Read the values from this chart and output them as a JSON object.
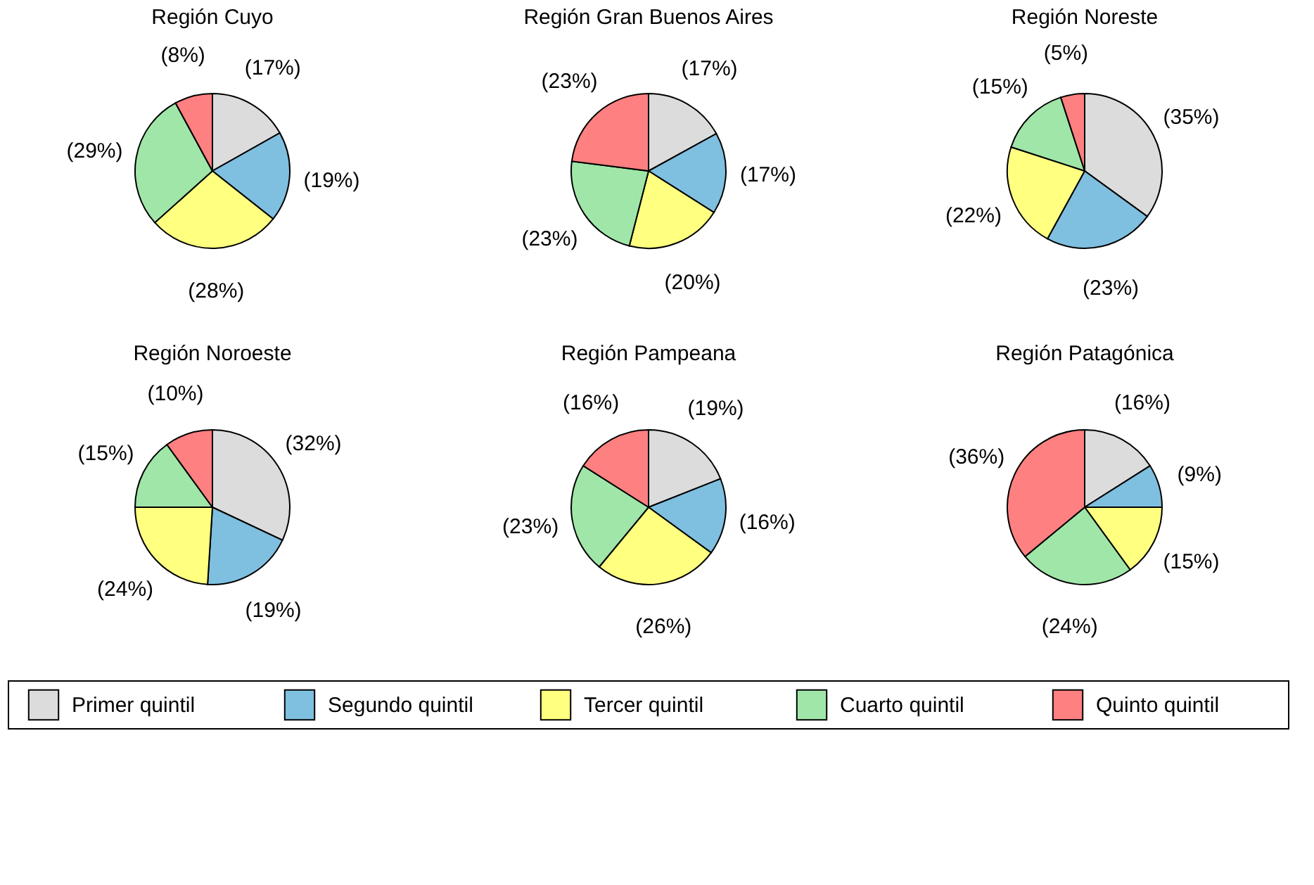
{
  "chart_data": [
    {
      "type": "pie",
      "title": "Región Cuyo",
      "categories": [
        "Primer quintil",
        "Segundo quintil",
        "Tercer quintil",
        "Cuarto quintil",
        "Quinto quintil"
      ],
      "values": [
        17,
        19,
        28,
        29,
        8
      ],
      "value_labels": [
        "(17%)",
        "(19%)",
        "(28%)",
        "(29%)",
        "(8%)"
      ],
      "colors": [
        "#dcdcdc",
        "#7fbfdf",
        "#ffff80",
        "#a0e6a8",
        "#ff8080"
      ],
      "legend": "bottom"
    },
    {
      "type": "pie",
      "title": "Región Gran Buenos Aires",
      "categories": [
        null,
        null,
        null,
        null,
        null
      ],
      "values": [
        17,
        17,
        20,
        23,
        23
      ],
      "value_labels": [
        "(17%)",
        "(17%)",
        "(20%)",
        "(23%)",
        "(23%)"
      ],
      "colors": [
        "#dcdcdc",
        "#7fbfdf",
        "#ffff80",
        "#a0e6a8",
        "#ff8080"
      ]
    },
    {
      "type": "pie",
      "title": "Región Noreste",
      "categories": [
        null,
        null,
        null,
        null,
        null
      ],
      "values": [
        35,
        23,
        22,
        15,
        5
      ],
      "value_labels": [
        "(35%)",
        "(23%)",
        "(22%)",
        "(15%)",
        "(5%)"
      ],
      "colors": [
        "#dcdcdc",
        "#7fbfdf",
        "#ffff80",
        "#a0e6a8",
        "#ff8080"
      ]
    },
    {
      "type": "pie",
      "title": "Región Noroeste",
      "categories": [
        null,
        null,
        null,
        null,
        null
      ],
      "values": [
        32,
        19,
        24,
        15,
        10
      ],
      "value_labels": [
        "(32%)",
        "(19%)",
        "(24%)",
        "(15%)",
        "(10%)"
      ],
      "colors": [
        "#dcdcdc",
        "#7fbfdf",
        "#ffff80",
        "#a0e6a8",
        "#ff8080"
      ]
    },
    {
      "type": "pie",
      "title": "Región Pampeana",
      "categories": [
        null,
        null,
        null,
        null,
        null
      ],
      "values": [
        19,
        16,
        26,
        23,
        16
      ],
      "value_labels": [
        "(19%)",
        "(16%)",
        "(26%)",
        "(23%)",
        "(16%)"
      ],
      "colors": [
        "#dcdcdc",
        "#7fbfdf",
        "#ffff80",
        "#a0e6a8",
        "#ff8080"
      ]
    },
    {
      "type": "pie",
      "title": "Región Patagónica",
      "categories": [
        null,
        null,
        null,
        null,
        null
      ],
      "values": [
        16,
        9,
        15,
        24,
        36
      ],
      "value_labels": [
        "(16%)",
        "(9%)",
        "(15%)",
        "(24%)",
        "(36%)"
      ],
      "colors": [
        "#dcdcdc",
        "#7fbfdf",
        "#ffff80",
        "#a0e6a8",
        "#ff8080"
      ]
    }
  ]
}
